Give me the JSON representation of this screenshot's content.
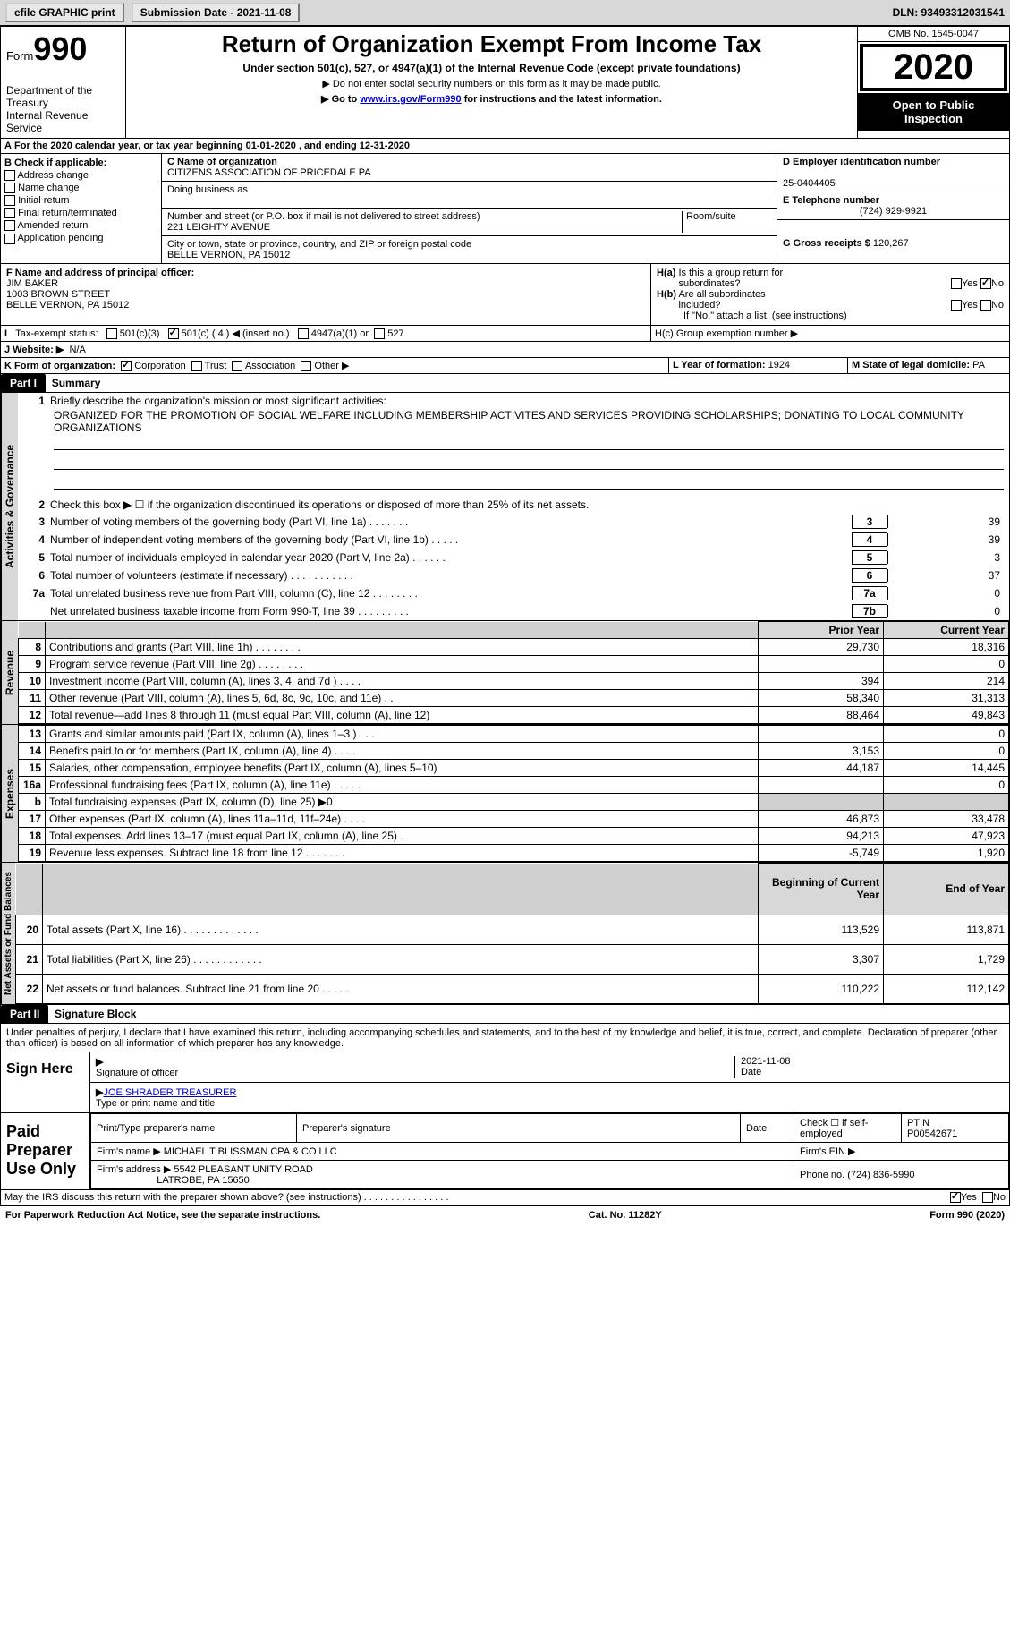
{
  "topbar": {
    "efile_label": "efile GRAPHIC print",
    "submission_label": "Submission Date - 2021-11-08",
    "dln": "DLN: 93493312031541"
  },
  "header": {
    "form_label": "Form",
    "form_number": "990",
    "dept": "Department of the Treasury\nInternal Revenue Service",
    "title": "Return of Organization Exempt From Income Tax",
    "subtitle": "Under section 501(c), 527, or 4947(a)(1) of the Internal Revenue Code (except private foundations)",
    "instr1": "▶ Do not enter social security numbers on this form as it may be made public.",
    "instr2_pre": "▶ Go to ",
    "instr2_link": "www.irs.gov/Form990",
    "instr2_post": " for instructions and the latest information.",
    "omb": "OMB No. 1545-0047",
    "year": "2020",
    "open_public": "Open to Public Inspection"
  },
  "section_a": {
    "period": "For the 2020 calendar year, or tax year beginning 01-01-2020   , and ending 12-31-2020",
    "b_label": "B Check if applicable:",
    "b_opts": [
      "Address change",
      "Name change",
      "Initial return",
      "Final return/terminated",
      "Amended return",
      "Application pending"
    ],
    "c_name_label": "C Name of organization",
    "c_name": "CITIZENS ASSOCIATION OF PRICEDALE PA",
    "dba_label": "Doing business as",
    "addr_label": "Number and street (or P.O. box if mail is not delivered to street address)",
    "room_label": "Room/suite",
    "addr": "221 LEIGHTY AVENUE",
    "city_label": "City or town, state or province, country, and ZIP or foreign postal code",
    "city": "BELLE VERNON, PA  15012",
    "d_label": "D Employer identification number",
    "d_ein": "25-0404405",
    "e_label": "E Telephone number",
    "e_phone": "(724) 929-9921",
    "g_label": "G Gross receipts $",
    "g_amount": "120,267",
    "f_label": "F Name and address of principal officer:",
    "f_name": "JIM BAKER",
    "f_addr1": "1003 BROWN STREET",
    "f_addr2": "BELLE VERNON, PA  15012",
    "ha_label": "H(a)  Is this a group return for subordinates?",
    "hb_label": "H(b)  Are all subordinates included?",
    "hb_note": "If \"No,\" attach a list. (see instructions)",
    "hc_label": "H(c)  Group exemption number ▶",
    "yes": "Yes",
    "no": "No",
    "i_label": "I   Tax-exempt status:",
    "i_501c3": "501(c)(3)",
    "i_501c": "501(c) ( 4 ) ◀ (insert no.)",
    "i_4947": "4947(a)(1) or",
    "i_527": "527",
    "j_label": "J   Website: ▶",
    "j_val": "N/A",
    "k_label": "K Form of organization:",
    "k_opts": [
      "Corporation",
      "Trust",
      "Association",
      "Other ▶"
    ],
    "l_label": "L Year of formation:",
    "l_val": "1924",
    "m_label": "M State of legal domicile:",
    "m_val": "PA"
  },
  "part1": {
    "title": "Part I",
    "subtitle": "Summary",
    "line1_label": "Briefly describe the organization's mission or most significant activities:",
    "line1_text": "ORGANIZED FOR THE PROMOTION OF SOCIAL WELFARE INCLUDING MEMBERSHIP ACTIVITES AND SERVICES PROVIDING SCHOLARSHIPS; DONATING TO LOCAL COMMUNITY ORGANIZATIONS",
    "line2": "Check this box ▶ ☐  if the organization discontinued its operations or disposed of more than 25% of its net assets.",
    "vtab_ag": "Activities & Governance",
    "vtab_rev": "Revenue",
    "vtab_exp": "Expenses",
    "vtab_na": "Net Assets or Fund Balances",
    "gov_lines": [
      {
        "n": "3",
        "t": "Number of voting members of the governing body (Part VI, line 1a)   .    .    .    .    .    .    .",
        "b": "3",
        "v": "39"
      },
      {
        "n": "4",
        "t": "Number of independent voting members of the governing body (Part VI, line 1b)   .    .    .    .    .",
        "b": "4",
        "v": "39"
      },
      {
        "n": "5",
        "t": "Total number of individuals employed in calendar year 2020 (Part V, line 2a)   .    .    .    .    .    .",
        "b": "5",
        "v": "3"
      },
      {
        "n": "6",
        "t": "Total number of volunteers (estimate if necessary)   .    .    .    .    .    .    .    .    .    .    .",
        "b": "6",
        "v": "37"
      },
      {
        "n": "7a",
        "t": "Total unrelated business revenue from Part VIII, column (C), line 12   .    .    .    .    .    .    .    .",
        "b": "7a",
        "v": "0"
      },
      {
        "n": "",
        "t": "Net unrelated business taxable income from Form 990-T, line 39   .    .    .    .    .    .    .    .    .",
        "b": "7b",
        "v": "0"
      }
    ],
    "col_hdrs": {
      "prior": "Prior Year",
      "current": "Current Year"
    },
    "rev_lines": [
      {
        "n": "8",
        "t": "Contributions and grants (Part VIII, line 1h)   .    .    .    .    .    .    .    .",
        "p": "29,730",
        "c": "18,316"
      },
      {
        "n": "9",
        "t": "Program service revenue (Part VIII, line 2g)   .    .    .    .    .    .    .    .",
        "p": "",
        "c": "0"
      },
      {
        "n": "10",
        "t": "Investment income (Part VIII, column (A), lines 3, 4, and 7d )   .    .    .    .",
        "p": "394",
        "c": "214"
      },
      {
        "n": "11",
        "t": "Other revenue (Part VIII, column (A), lines 5, 6d, 8c, 9c, 10c, and 11e)   .    .",
        "p": "58,340",
        "c": "31,313"
      },
      {
        "n": "12",
        "t": "Total revenue—add lines 8 through 11 (must equal Part VIII, column (A), line 12)",
        "p": "88,464",
        "c": "49,843"
      }
    ],
    "exp_lines": [
      {
        "n": "13",
        "t": "Grants and similar amounts paid (Part IX, column (A), lines 1–3 )   .    .    .",
        "p": "",
        "c": "0"
      },
      {
        "n": "14",
        "t": "Benefits paid to or for members (Part IX, column (A), line 4)   .    .    .    .",
        "p": "3,153",
        "c": "0"
      },
      {
        "n": "15",
        "t": "Salaries, other compensation, employee benefits (Part IX, column (A), lines 5–10)",
        "p": "44,187",
        "c": "14,445"
      },
      {
        "n": "16a",
        "t": "Professional fundraising fees (Part IX, column (A), line 11e)   .    .    .    .    .",
        "p": "",
        "c": "0"
      },
      {
        "n": "b",
        "t": "Total fundraising expenses (Part IX, column (D), line 25) ▶0",
        "p": "SHADED",
        "c": "SHADED"
      },
      {
        "n": "17",
        "t": "Other expenses (Part IX, column (A), lines 11a–11d, 11f–24e)   .    .    .    .",
        "p": "46,873",
        "c": "33,478"
      },
      {
        "n": "18",
        "t": "Total expenses. Add lines 13–17 (must equal Part IX, column (A), line 25)   .",
        "p": "94,213",
        "c": "47,923"
      },
      {
        "n": "19",
        "t": "Revenue less expenses. Subtract line 18 from line 12   .    .    .    .    .    .    .",
        "p": "-5,749",
        "c": "1,920"
      }
    ],
    "na_hdrs": {
      "beg": "Beginning of Current Year",
      "end": "End of Year"
    },
    "na_lines": [
      {
        "n": "20",
        "t": "Total assets (Part X, line 16)   .    .    .    .    .    .    .    .    .    .    .    .    .",
        "p": "113,529",
        "c": "113,871"
      },
      {
        "n": "21",
        "t": "Total liabilities (Part X, line 26)   .    .    .    .    .    .    .    .    .    .    .    .",
        "p": "3,307",
        "c": "1,729"
      },
      {
        "n": "22",
        "t": "Net assets or fund balances. Subtract line 21 from line 20   .    .    .    .    .",
        "p": "110,222",
        "c": "112,142"
      }
    ]
  },
  "part2": {
    "title": "Part II",
    "subtitle": "Signature Block",
    "penalties": "Under penalties of perjury, I declare that I have examined this return, including accompanying schedules and statements, and to the best of my knowledge and belief, it is true, correct, and complete. Declaration of preparer (other than officer) is based on all information of which preparer has any knowledge.",
    "sign_here": "Sign Here",
    "sig_officer": "Signature of officer",
    "sig_date": "2021-11-08",
    "date_label": "Date",
    "officer_name": "JOE SHRADER TREASURER",
    "type_name": "Type or print name and title",
    "paid_prep": "Paid Preparer Use Only",
    "prep_name_label": "Print/Type preparer's name",
    "prep_sig_label": "Preparer's signature",
    "check_self": "Check ☐ if self-employed",
    "ptin_label": "PTIN",
    "ptin": "P00542671",
    "firm_name_label": "Firm's name    ▶",
    "firm_name": "MICHAEL T BLISSMAN CPA & CO LLC",
    "firm_ein_label": "Firm's EIN ▶",
    "firm_addr_label": "Firm's address ▶",
    "firm_addr1": "5542 PLEASANT UNITY ROAD",
    "firm_addr2": "LATROBE, PA  15650",
    "phone_label": "Phone no.",
    "phone": "(724) 836-5990",
    "discuss": "May the IRS discuss this return with the preparer shown above? (see instructions)   .    .    .    .    .    .    .    .    .    .    .    .    .    .    .    ."
  },
  "footer": {
    "pra": "For Paperwork Reduction Act Notice, see the separate instructions.",
    "cat": "Cat. No. 11282Y",
    "form": "Form 990 (2020)"
  }
}
